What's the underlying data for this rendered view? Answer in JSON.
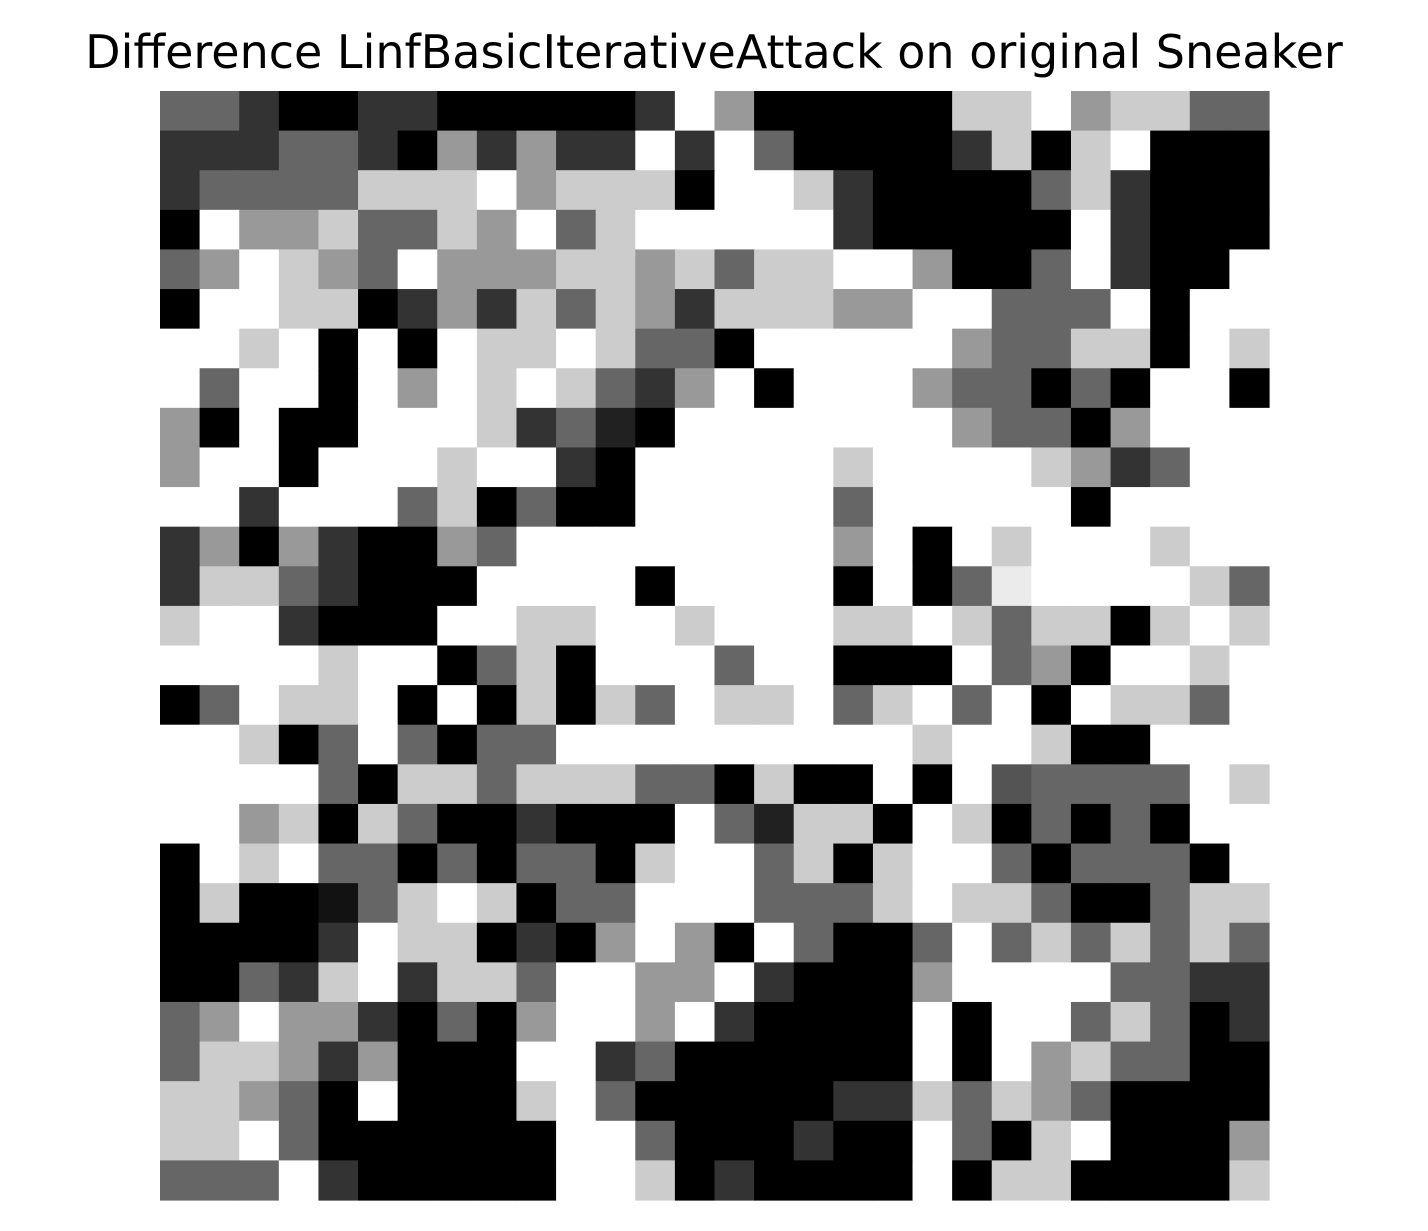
{
  "chart_data": {
    "type": "heatmap",
    "title": "Difference LinfBasicIterativeAttack on original Sneaker",
    "xlabel": "",
    "ylabel": "",
    "axes": "off",
    "grid": false,
    "colormap": "gray",
    "value_range": [
      0,
      1
    ],
    "rows": 28,
    "cols": 28,
    "values": [
      [
        0.4,
        0.4,
        0.2,
        0,
        0,
        0.2,
        0.2,
        0,
        0,
        0,
        0,
        0,
        0.2,
        1,
        0.6,
        0,
        0,
        0,
        0,
        0,
        0.8,
        0.8,
        1,
        0.6,
        0.8,
        0.8,
        0.4,
        0.4
      ],
      [
        0.2,
        0.2,
        0.2,
        0.4,
        0.4,
        0.2,
        0,
        0.6,
        0.2,
        0.6,
        0.2,
        0.2,
        1,
        0.2,
        1,
        0.4,
        0,
        0,
        0,
        0,
        0.2,
        0.8,
        0,
        0.8,
        1,
        0,
        0,
        0
      ],
      [
        0.2,
        0.4,
        0.4,
        0.4,
        0.4,
        0.8,
        0.8,
        0.8,
        1,
        0.6,
        0.8,
        0.8,
        0.8,
        0,
        1,
        1,
        0.8,
        0.2,
        0,
        0,
        0,
        0,
        0.4,
        0.8,
        0.2,
        0,
        0,
        0
      ],
      [
        0,
        1,
        0.6,
        0.6,
        0.8,
        0.4,
        0.4,
        0.8,
        0.6,
        1,
        0.4,
        0.8,
        1,
        1,
        1,
        1,
        1,
        0.2,
        0,
        0,
        0,
        0,
        0,
        1,
        0.2,
        0,
        0,
        0
      ],
      [
        0.4,
        0.6,
        1,
        0.8,
        0.6,
        0.4,
        1,
        0.6,
        0.6,
        0.6,
        0.8,
        0.8,
        0.6,
        0.8,
        0.4,
        0.8,
        0.8,
        1,
        1,
        0.6,
        0,
        0,
        0.4,
        1,
        0.2,
        0,
        0,
        1
      ],
      [
        0,
        1,
        1,
        0.8,
        0.8,
        0,
        0.2,
        0.6,
        0.2,
        0.8,
        0.4,
        0.8,
        0.6,
        0.2,
        0.8,
        0.8,
        0.8,
        0.6,
        0.6,
        1,
        1,
        0.4,
        0.4,
        0.4,
        1,
        0,
        1,
        1
      ],
      [
        1,
        1,
        0.8,
        1,
        0,
        1,
        0,
        1,
        0.8,
        0.8,
        1,
        0.8,
        0.4,
        0.4,
        0,
        1,
        1,
        1,
        1,
        1,
        0.6,
        0.4,
        0.4,
        0.8,
        0.8,
        0,
        1,
        0.8
      ],
      [
        1,
        0.4,
        1,
        1,
        0,
        1,
        0.6,
        1,
        0.8,
        1,
        0.8,
        0.4,
        0.2,
        0.6,
        1,
        0,
        1,
        1,
        1,
        0.6,
        0.4,
        0.4,
        0,
        0.4,
        0,
        1,
        1,
        0
      ],
      [
        0.6,
        0,
        1,
        0,
        0,
        1,
        1,
        1,
        0.8,
        0.2,
        0.4,
        0.13,
        0,
        1,
        1,
        1,
        1,
        1,
        1,
        1,
        0.6,
        0.4,
        0.4,
        0,
        0.6,
        1,
        1,
        1
      ],
      [
        0.6,
        1,
        1,
        0,
        1,
        1,
        1,
        0.8,
        1,
        1,
        0.2,
        0,
        1,
        1,
        1,
        1,
        1,
        0.8,
        1,
        1,
        1,
        1,
        0.8,
        0.6,
        0.2,
        0.4,
        1,
        1
      ],
      [
        1,
        1,
        0.2,
        1,
        1,
        1,
        0.4,
        0.8,
        0,
        0.4,
        0,
        0,
        1,
        1,
        1,
        1,
        1,
        0.4,
        1,
        1,
        1,
        1,
        1,
        0,
        1,
        1,
        1,
        1
      ],
      [
        0.2,
        0.6,
        0,
        0.6,
        0.2,
        0,
        0,
        0.6,
        0.4,
        1,
        1,
        1,
        1,
        1,
        1,
        1,
        1,
        0.6,
        1,
        0,
        1,
        0.8,
        1,
        1,
        1,
        0.8,
        1,
        1
      ],
      [
        0.2,
        0.8,
        0.8,
        0.4,
        0.2,
        0,
        0,
        0,
        1,
        1,
        1,
        1,
        0,
        1,
        1,
        1,
        1,
        0,
        1,
        0,
        0.4,
        0.92,
        1,
        1,
        1,
        1,
        0.8,
        0.4
      ],
      [
        0.8,
        1,
        1,
        0.2,
        0,
        0,
        0,
        1,
        1,
        0.8,
        0.8,
        1,
        1,
        0.8,
        1,
        1,
        1,
        0.8,
        0.8,
        1,
        0.8,
        0.4,
        0.8,
        0.8,
        0,
        0.8,
        1,
        0.8
      ],
      [
        1,
        1,
        1,
        1,
        0.8,
        1,
        1,
        0,
        0.4,
        0.8,
        0,
        1,
        1,
        1,
        0.4,
        1,
        1,
        0,
        0,
        0,
        1,
        0.4,
        0.6,
        0,
        1,
        1,
        0.8,
        1
      ],
      [
        0,
        0.4,
        1,
        0.8,
        0.8,
        1,
        0,
        1,
        0,
        0.8,
        0,
        0.8,
        0.4,
        1,
        0.8,
        0.8,
        1,
        0.4,
        0.8,
        1,
        0.4,
        1,
        0,
        1,
        0.8,
        0.8,
        0.4,
        1
      ],
      [
        1,
        1,
        0.8,
        0,
        0.4,
        1,
        0.4,
        0,
        0.4,
        0.4,
        1,
        1,
        1,
        1,
        1,
        1,
        1,
        1,
        1,
        0.8,
        1,
        1,
        0.8,
        0,
        0,
        1,
        1,
        1
      ],
      [
        1,
        1,
        1,
        1,
        0.4,
        0,
        0.8,
        0.8,
        0.4,
        0.8,
        0.8,
        0.8,
        0.4,
        0.4,
        0,
        0.8,
        0,
        0,
        1,
        0,
        1,
        0.33,
        0.4,
        0.4,
        0.4,
        0.4,
        1,
        0.8
      ],
      [
        1,
        1,
        0.6,
        0.8,
        0,
        0.8,
        0.4,
        0,
        0,
        0.2,
        0,
        0,
        0,
        1,
        0.4,
        0.13,
        0.8,
        0.8,
        0,
        1,
        0.8,
        0,
        0.4,
        0,
        0.4,
        0,
        1,
        1
      ],
      [
        0,
        1,
        0.8,
        1,
        0.4,
        0.4,
        0,
        0.4,
        0,
        0.4,
        0.4,
        0,
        0.8,
        1,
        1,
        0.4,
        0.8,
        0,
        0.8,
        1,
        1,
        0.4,
        0,
        0.4,
        0.4,
        0.4,
        0,
        1
      ],
      [
        0,
        0.8,
        0,
        0,
        0.07,
        0.4,
        0.8,
        1,
        0.8,
        0,
        0.4,
        0.4,
        1,
        1,
        1,
        0.4,
        0.4,
        0.4,
        0.8,
        1,
        0.8,
        0.8,
        0.4,
        0,
        0,
        0.4,
        0.8,
        0.8
      ],
      [
        0,
        0,
        0,
        0,
        0.2,
        1,
        0.8,
        0.8,
        0,
        0.2,
        0,
        0.6,
        1,
        0.6,
        0,
        1,
        0.4,
        0,
        0,
        0.4,
        1,
        0.4,
        0.8,
        0.4,
        0.8,
        0.4,
        0.8,
        0.4
      ],
      [
        0,
        0,
        0.4,
        0.2,
        0.8,
        1,
        0.2,
        0.8,
        0.8,
        0.4,
        1,
        1,
        0.6,
        0.6,
        1,
        0.2,
        0,
        0,
        0,
        0.6,
        1,
        1,
        1,
        1,
        0.4,
        0.4,
        0.2,
        0.2
      ],
      [
        0.4,
        0.6,
        1,
        0.6,
        0.6,
        0.2,
        0,
        0.4,
        0,
        0.6,
        1,
        1,
        0.6,
        1,
        0.2,
        0,
        0,
        0,
        0,
        1,
        0,
        1,
        1,
        0.4,
        0.8,
        0.4,
        0,
        0.2
      ],
      [
        0.4,
        0.8,
        0.8,
        0.6,
        0.2,
        0.6,
        0,
        0,
        0,
        1,
        1,
        0.2,
        0.4,
        0,
        0,
        0,
        0,
        0,
        0,
        1,
        0,
        1,
        0.6,
        0.8,
        0.4,
        0.4,
        0,
        0
      ],
      [
        0.8,
        0.8,
        0.6,
        0.4,
        0,
        1,
        0,
        0,
        0,
        0.8,
        1,
        0.4,
        0,
        0,
        0,
        0,
        0,
        0.2,
        0.2,
        0.8,
        0.4,
        0.8,
        0.6,
        0.4,
        0,
        0,
        0,
        0
      ],
      [
        0.8,
        0.8,
        1,
        0.4,
        0,
        0,
        0,
        0,
        0,
        0,
        1,
        1,
        0.4,
        0,
        0,
        0,
        0.2,
        0,
        0,
        1,
        0.4,
        0,
        0.8,
        1,
        0,
        0,
        0,
        0.6
      ],
      [
        0.4,
        0.4,
        0.4,
        1,
        0.2,
        0,
        0,
        0,
        0,
        0,
        1,
        1,
        0.8,
        0,
        0.2,
        0,
        0,
        0,
        0,
        1,
        0,
        0.8,
        0.8,
        0,
        0,
        0,
        0,
        0.8
      ]
    ]
  }
}
